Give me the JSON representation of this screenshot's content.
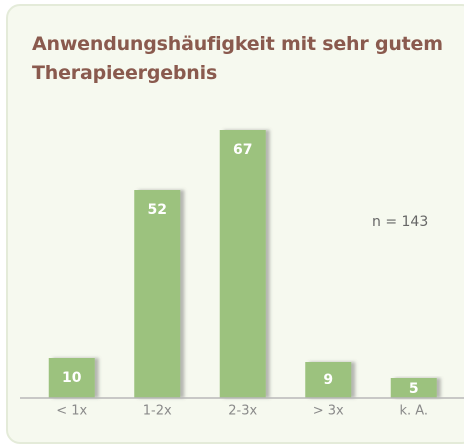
{
  "chart_data": {
    "type": "bar",
    "title": "Anwendungshäufigkeit mit sehr gutem Therapieergebnis",
    "categories": [
      "< 1x",
      "1-2x",
      "2-3x",
      "> 3x",
      "k. A."
    ],
    "values": [
      10,
      52,
      67,
      9,
      5
    ],
    "color": "#9cc27e",
    "annotation": "n = 143"
  }
}
